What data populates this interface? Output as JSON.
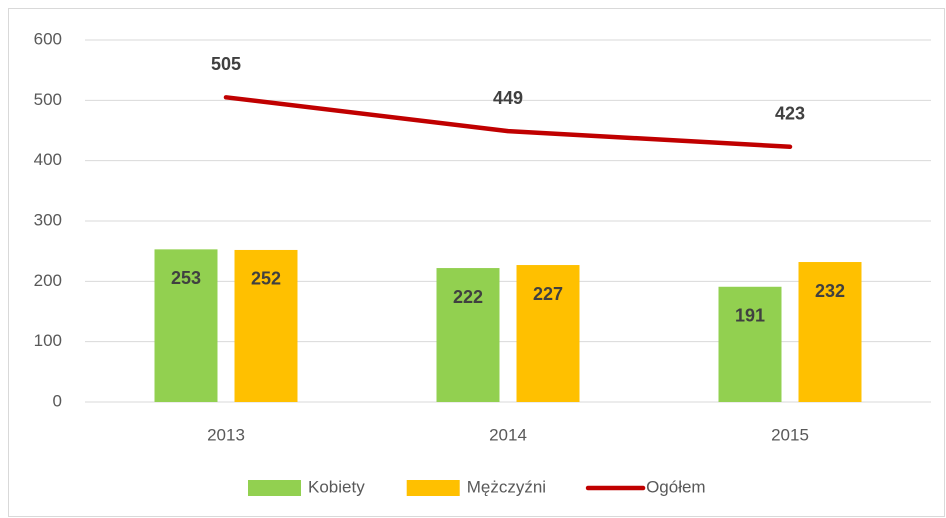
{
  "chart_data": {
    "type": "bar",
    "categories": [
      "2013",
      "2014",
      "2015"
    ],
    "series": [
      {
        "name": "Kobiety",
        "color": "#92d050",
        "type": "bar",
        "values": [
          253,
          222,
          191
        ]
      },
      {
        "name": "Mężczyźni",
        "color": "#ffc000",
        "type": "bar",
        "values": [
          252,
          227,
          232
        ]
      },
      {
        "name": "Ogółem",
        "color": "#c00000",
        "type": "line",
        "values": [
          505,
          449,
          423
        ]
      }
    ],
    "ylim": [
      0,
      600
    ],
    "yticks": [
      0,
      100,
      200,
      300,
      400,
      500,
      600
    ],
    "grid": true,
    "legend": "bottom"
  }
}
